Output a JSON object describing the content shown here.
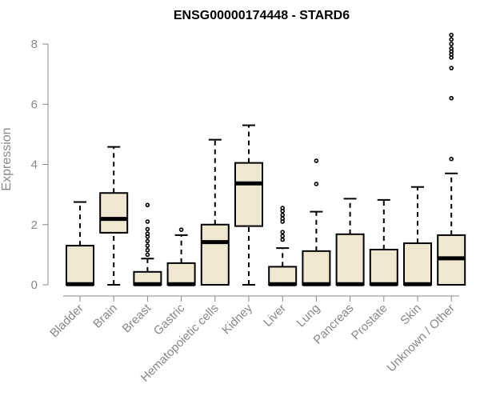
{
  "chart_data": {
    "type": "boxplot",
    "title": "ENSG00000174448 - STARD6",
    "ylabel": "Expression",
    "ylim": [
      0,
      8.3
    ],
    "yticks": [
      0,
      2,
      4,
      6,
      8
    ],
    "categories": [
      "Bladder",
      "Brain",
      "Breast",
      "Gastric",
      "Hematopoietic cells",
      "Kidney",
      "Liver",
      "Lung",
      "Pancreas",
      "Prostate",
      "Skin",
      "Unknown / Other"
    ],
    "boxes": [
      {
        "whisker_low": 0,
        "q1": 0,
        "median": 0.02,
        "q3": 1.3,
        "whisker_high": 2.75,
        "outliers": []
      },
      {
        "whisker_low": 0,
        "q1": 1.73,
        "median": 2.19,
        "q3": 3.05,
        "whisker_high": 4.58,
        "outliers": []
      },
      {
        "whisker_low": 0,
        "q1": 0,
        "median": 0.02,
        "q3": 0.43,
        "whisker_high": 0.87,
        "outliers": [
          1.0,
          1.15,
          1.3,
          1.45,
          1.6,
          1.7,
          1.85,
          2.1,
          2.65
        ]
      },
      {
        "whisker_low": 0,
        "q1": 0,
        "median": 0.02,
        "q3": 0.72,
        "whisker_high": 1.65,
        "outliers": [
          1.83
        ]
      },
      {
        "whisker_low": 0,
        "q1": 0,
        "median": 1.42,
        "q3": 2.0,
        "whisker_high": 4.82,
        "outliers": []
      },
      {
        "whisker_low": 0,
        "q1": 1.95,
        "median": 3.37,
        "q3": 4.05,
        "whisker_high": 5.3,
        "outliers": []
      },
      {
        "whisker_low": 0,
        "q1": 0,
        "median": 0.02,
        "q3": 0.6,
        "whisker_high": 1.22,
        "outliers": [
          1.5,
          1.62,
          1.75,
          2.1,
          2.2,
          2.32,
          2.45,
          2.55
        ]
      },
      {
        "whisker_low": 0,
        "q1": 0,
        "median": 0.02,
        "q3": 1.12,
        "whisker_high": 2.43,
        "outliers": [
          3.35,
          4.12
        ]
      },
      {
        "whisker_low": 0,
        "q1": 0,
        "median": 0.02,
        "q3": 1.68,
        "whisker_high": 2.86,
        "outliers": []
      },
      {
        "whisker_low": 0,
        "q1": 0,
        "median": 0.02,
        "q3": 1.17,
        "whisker_high": 2.82,
        "outliers": []
      },
      {
        "whisker_low": 0,
        "q1": 0,
        "median": 0.02,
        "q3": 1.38,
        "whisker_high": 3.25,
        "outliers": []
      },
      {
        "whisker_low": 0,
        "q1": 0,
        "median": 0.88,
        "q3": 1.65,
        "whisker_high": 3.7,
        "outliers": [
          4.18,
          6.2,
          7.2,
          7.55,
          7.65,
          7.75,
          7.85,
          8.0,
          8.15,
          8.3
        ]
      }
    ],
    "colors": {
      "box_fill": "#efe7cf",
      "stroke": "#000000",
      "axis_text": "#888888"
    },
    "grid": false,
    "legend": "none"
  }
}
